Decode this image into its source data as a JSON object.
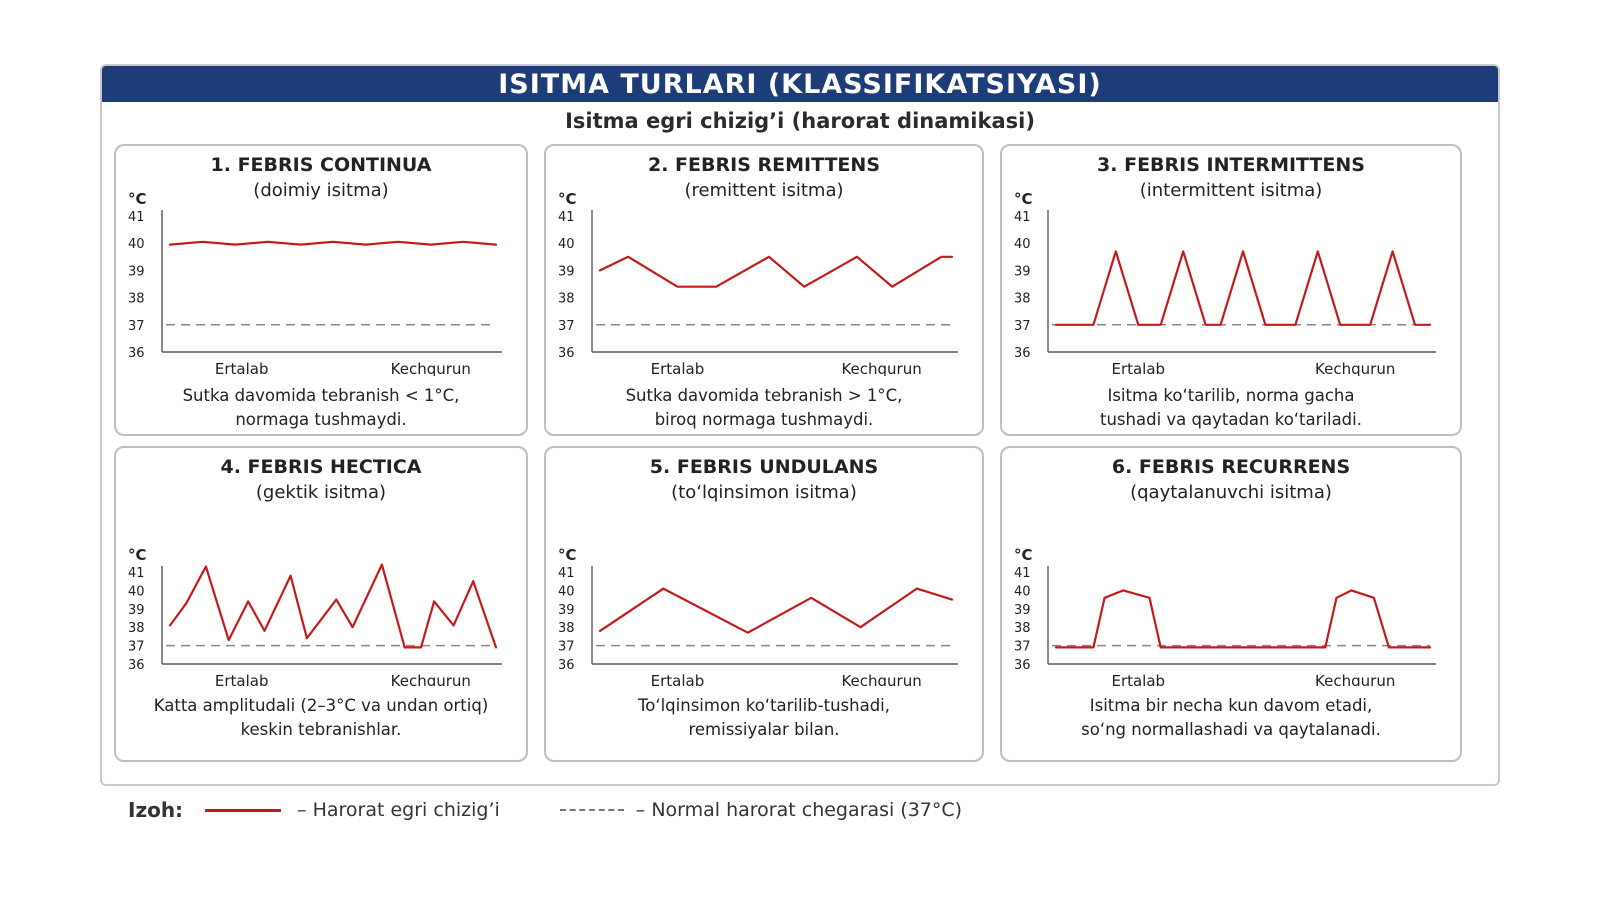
{
  "title": "ISITMA TURLARI (KLASSIFIKATSIYASI)",
  "subtitle": "Isitma egri chizig’i (harorat dinamikasi)",
  "axis": {
    "unit": "°C",
    "ticks": [
      "41",
      "40",
      "39",
      "38",
      "37",
      "36"
    ],
    "x_left": "Ertalab",
    "x_right": "Kechqurun"
  },
  "colors": {
    "curve": "#c41a1a",
    "normal_line": "#888888",
    "banner": "#1d3d78"
  },
  "panels": [
    {
      "title": "1. FEBRIS CONTINUA",
      "subtitle": "(doimiy isitma)",
      "desc1": "Sutka davomida tebranish < 1°C,",
      "desc2": "normaga tushmaydi."
    },
    {
      "title": "2. FEBRIS REMITTENS",
      "subtitle": "(remittent isitma)",
      "desc1": "Sutka davomida tebranish > 1°C,",
      "desc2": "biroq normaga tushmaydi."
    },
    {
      "title": "3. FEBRIS INTERMITTENS",
      "subtitle": "(intermittent isitma)",
      "desc1": "Isitma ko‘tarilib, norma gacha",
      "desc2": "tushadi va qaytadan ko‘tariladi."
    },
    {
      "title": "4. FEBRIS HECTICA",
      "subtitle": "(gektik isitma)",
      "desc1": "Katta amplitudali (2–3°C va undan ortiq)",
      "desc2": "keskin tebranishlar."
    },
    {
      "title": "5. FEBRIS UNDULANS",
      "subtitle": "(to‘lqinsimon isitma)",
      "desc1": "To‘lqinsimon ko‘tarilib-tushadi,",
      "desc2": "remissiyalar bilan."
    },
    {
      "title": "6. FEBRIS RECURRENS",
      "subtitle": "(qaytalanuvchi isitma)",
      "desc1": "Isitma bir necha kun davom etadi,",
      "desc2": "so‘ng normallashadi va qaytalanadi."
    }
  ],
  "legend": {
    "label": "Izoh:",
    "curve": "– Harorat egri chizig’i",
    "normal": "– Normal harorat chegarasi (37°C)"
  },
  "chart_data": [
    {
      "type": "line",
      "ylim": [
        36,
        41
      ],
      "normal_level": 37,
      "x": [
        0,
        0.1,
        0.2,
        0.3,
        0.4,
        0.5,
        0.6,
        0.7,
        0.8,
        0.9,
        1
      ],
      "y": [
        39.95,
        40.05,
        39.95,
        40.05,
        39.95,
        40.05,
        39.95,
        40.05,
        39.95,
        40.05,
        39.95
      ]
    },
    {
      "type": "line",
      "ylim": [
        36,
        41
      ],
      "normal_level": 37,
      "x": [
        0,
        0.08,
        0.22,
        0.33,
        0.48,
        0.58,
        0.73,
        0.83,
        0.97,
        1
      ],
      "y": [
        39.0,
        39.5,
        38.4,
        38.4,
        39.5,
        38.4,
        39.5,
        38.4,
        39.5,
        39.5
      ]
    },
    {
      "type": "line",
      "ylim": [
        36,
        41
      ],
      "normal_level": 37,
      "x": [
        0,
        0.1,
        0.16,
        0.22,
        0.28,
        0.34,
        0.4,
        0.44,
        0.5,
        0.56,
        0.64,
        0.7,
        0.76,
        0.84,
        0.9,
        0.96,
        1
      ],
      "y": [
        37,
        37,
        39.7,
        37,
        37,
        39.7,
        37,
        37,
        39.7,
        37,
        37,
        39.7,
        37,
        37,
        39.7,
        37,
        37
      ]
    },
    {
      "type": "line",
      "ylim": [
        36,
        41
      ],
      "normal_level": 37,
      "x": [
        0,
        0.05,
        0.11,
        0.18,
        0.24,
        0.29,
        0.37,
        0.42,
        0.51,
        0.56,
        0.65,
        0.72,
        0.77,
        0.81,
        0.87,
        0.93,
        1
      ],
      "y": [
        38.1,
        39.3,
        41.3,
        37.3,
        39.4,
        37.8,
        40.8,
        37.4,
        39.5,
        38.0,
        41.4,
        36.9,
        36.9,
        39.4,
        38.1,
        40.5,
        36.9
      ]
    },
    {
      "type": "line",
      "ylim": [
        36,
        41
      ],
      "normal_level": 37,
      "x": [
        0,
        0.18,
        0.42,
        0.6,
        0.74,
        0.9,
        1
      ],
      "y": [
        37.8,
        40.1,
        37.7,
        39.6,
        38.0,
        40.1,
        39.5
      ]
    },
    {
      "type": "line",
      "ylim": [
        36,
        41
      ],
      "normal_level": 37,
      "x": [
        0,
        0.1,
        0.13,
        0.18,
        0.25,
        0.28,
        0.72,
        0.75,
        0.79,
        0.85,
        0.89,
        1
      ],
      "y": [
        36.9,
        36.9,
        39.6,
        40.0,
        39.6,
        36.9,
        36.9,
        39.6,
        40.0,
        39.6,
        36.9,
        36.9
      ]
    }
  ]
}
